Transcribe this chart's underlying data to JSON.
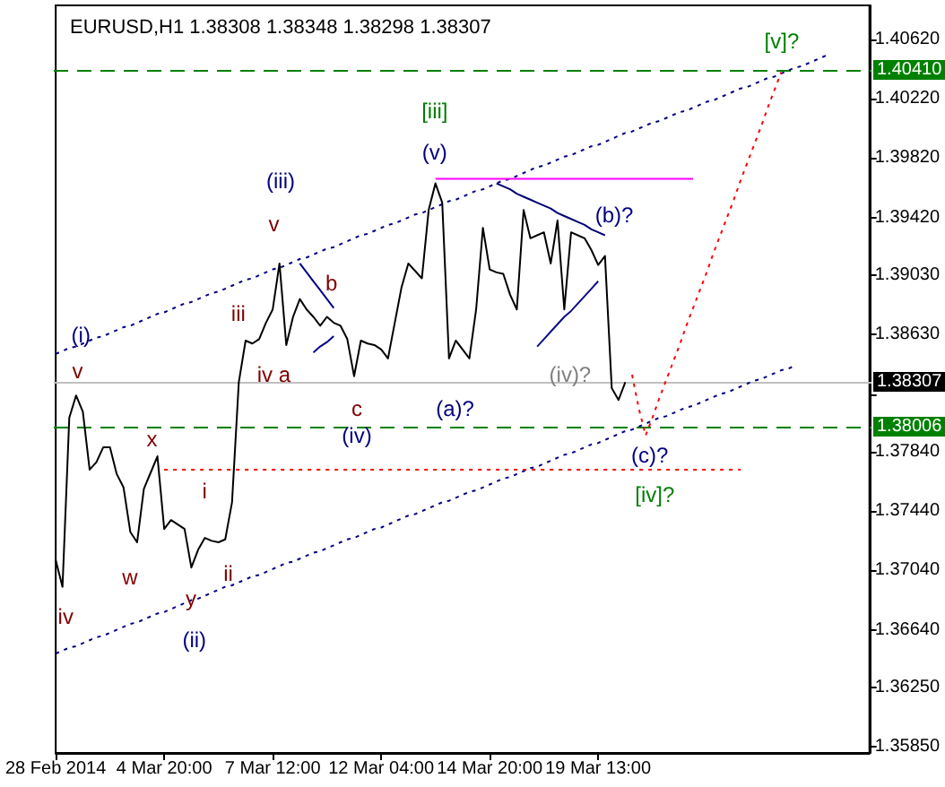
{
  "chart_data": {
    "type": "line",
    "title": "EURUSD,H1 1.38308 1.38348 1.38298 1.38307",
    "marker": "none",
    "ylim": [
      1.3581,
      1.4085
    ],
    "categories": [
      "28 Feb 2014",
      null,
      null,
      null,
      null,
      null,
      null,
      null,
      null,
      null,
      null,
      null,
      null,
      null,
      null,
      null,
      "4 Mar 20:00",
      null,
      null,
      null,
      null,
      null,
      null,
      null,
      null,
      null,
      null,
      null,
      null,
      null,
      null,
      null,
      "7 Mar 12:00",
      null,
      null,
      null,
      null,
      null,
      null,
      null,
      null,
      null,
      null,
      null,
      null,
      null,
      null,
      null,
      "12 Mar 04:00",
      null,
      null,
      null,
      null,
      null,
      null,
      null,
      null,
      null,
      null,
      null,
      null,
      null,
      null,
      null,
      "14 Mar 20:00",
      null,
      null,
      null,
      null,
      null,
      null,
      null,
      null,
      null,
      null,
      null,
      null,
      null,
      null,
      null,
      "19 Mar 13:00",
      null,
      null,
      null,
      null,
      null,
      null,
      null,
      null,
      null,
      null,
      null,
      null,
      null,
      null,
      null,
      null,
      null,
      null,
      null,
      null,
      null,
      null,
      null,
      null,
      null,
      null,
      null,
      null,
      null,
      null,
      null,
      null,
      null,
      null,
      null,
      null,
      null,
      null,
      null,
      null
    ],
    "yticks": [
      {
        "value": 1.4062,
        "label": "1.40620"
      },
      {
        "value": 1.4022,
        "label": "1.40220"
      },
      {
        "value": 1.3982,
        "label": "1.39820"
      },
      {
        "value": 1.3942,
        "label": "1.39420"
      },
      {
        "value": 1.3903,
        "label": "1.39030"
      },
      {
        "value": 1.3863,
        "label": "1.38630"
      },
      {
        "value": 1.3823,
        "label": null
      },
      {
        "value": 1.3784,
        "label": "1.37840"
      },
      {
        "value": 1.3744,
        "label": "1.37440"
      },
      {
        "value": 1.3704,
        "label": "1.37040"
      },
      {
        "value": 1.3664,
        "label": "1.36640"
      },
      {
        "value": 1.3625,
        "label": "1.36250"
      },
      {
        "value": 1.3585,
        "label": "1.35850"
      }
    ],
    "series": [
      {
        "color": "#000000",
        "line_style": "solid",
        "values": [
          1.3711,
          1.3693,
          1.3807,
          1.3822,
          1.3811,
          1.3772,
          1.3777,
          1.3787,
          1.3787,
          1.3769,
          1.376,
          1.373,
          1.3723,
          1.3759,
          1.377,
          1.3781,
          1.3732,
          1.3738,
          1.3735,
          1.3732,
          1.3706,
          1.3718,
          1.3726,
          1.3724,
          1.3723,
          1.3725,
          1.375,
          1.3831,
          1.3859,
          1.3857,
          1.386,
          1.3871,
          1.388,
          1.3911,
          1.3856,
          1.3875,
          1.3887,
          1.388,
          1.3875,
          1.3869,
          1.3875,
          1.3871,
          1.3869,
          1.386,
          1.3835,
          1.3859,
          1.3857,
          1.3856,
          1.3853,
          1.3847,
          1.3871,
          1.3895,
          1.3911,
          1.3906,
          1.3901,
          1.3947,
          1.3965,
          1.3952,
          1.3847,
          1.3859,
          1.3853,
          1.3847,
          1.388,
          1.3935,
          1.3907,
          1.3905,
          1.3904,
          1.389,
          1.388,
          1.3947,
          1.3928,
          1.393,
          1.3932,
          1.3911,
          1.394,
          1.388,
          1.3932,
          1.393,
          1.3928,
          1.392,
          1.391,
          1.3916,
          1.3827,
          1.3819,
          1.3831,
          null,
          null,
          null,
          null,
          null,
          null,
          null,
          null,
          null,
          null,
          null,
          null,
          null,
          null,
          null,
          null,
          null,
          null,
          null,
          null,
          null,
          null,
          null,
          null,
          null,
          null,
          null,
          null,
          null,
          null,
          null,
          null,
          null,
          null,
          null,
          null
        ]
      },
      {
        "color": "#000080",
        "line_style": "dotted",
        "values": [
          1.385,
          1.3852,
          1.3854,
          1.3855,
          1.3857,
          1.3859,
          1.3861,
          1.3862,
          1.3864,
          1.3866,
          1.3868,
          1.3869,
          1.3871,
          1.3873,
          1.3875,
          1.3877,
          1.3878,
          1.388,
          1.3882,
          1.3884,
          1.3885,
          1.3887,
          1.3889,
          1.3891,
          1.3892,
          1.3894,
          1.3896,
          1.3898,
          1.39,
          1.3901,
          1.3903,
          1.3905,
          1.3907,
          1.3908,
          1.391,
          1.3912,
          1.3914,
          1.3915,
          1.3917,
          1.3919,
          1.3921,
          1.3922,
          1.3924,
          1.3926,
          1.3928,
          1.393,
          1.3931,
          1.3933,
          1.3935,
          1.3937,
          1.3938,
          1.394,
          1.3942,
          1.3944,
          1.3945,
          1.3947,
          1.3949,
          1.3951,
          1.3953,
          1.3954,
          1.3956,
          1.3958,
          1.396,
          1.3961,
          1.3963,
          1.3965,
          1.3967,
          1.3968,
          1.397,
          1.3972,
          1.3974,
          1.3976,
          1.3977,
          1.3979,
          1.3981,
          1.3983,
          1.3984,
          1.3986,
          1.3988,
          1.399,
          1.3991,
          1.3993,
          1.3995,
          1.3997,
          1.3999,
          1.4,
          1.4002,
          1.4004,
          1.4006,
          1.4007,
          1.4009,
          1.4011,
          1.4013,
          1.4014,
          1.4016,
          1.4018,
          1.402,
          1.4021,
          1.4023,
          1.4025,
          1.4027,
          1.4029,
          1.403,
          1.4032,
          1.4034,
          1.4036,
          1.4037,
          1.4039,
          1.4041,
          1.4043,
          1.4044,
          1.4046,
          1.4048,
          1.405,
          1.4052,
          null,
          null,
          null,
          null,
          null,
          null
        ]
      },
      {
        "color": "#000080",
        "line_style": "dotted",
        "values": [
          1.3648,
          1.365,
          1.3652,
          1.3653,
          1.3655,
          1.3657,
          1.3659,
          1.366,
          1.3662,
          1.3664,
          1.3666,
          1.3668,
          1.3669,
          1.3671,
          1.3673,
          1.3675,
          1.3676,
          1.3678,
          1.368,
          1.3682,
          1.3684,
          1.3685,
          1.3687,
          1.3689,
          1.3691,
          1.3693,
          1.3694,
          1.3696,
          1.3698,
          1.37,
          1.3701,
          1.3703,
          1.3705,
          1.3707,
          1.3709,
          1.371,
          1.3712,
          1.3714,
          1.3716,
          1.3717,
          1.3719,
          1.3721,
          1.3723,
          1.3725,
          1.3726,
          1.3728,
          1.373,
          1.3732,
          1.3733,
          1.3735,
          1.3737,
          1.3739,
          1.3741,
          1.3742,
          1.3744,
          1.3746,
          1.3748,
          1.375,
          1.3751,
          1.3753,
          1.3755,
          1.3757,
          1.3758,
          1.376,
          1.3762,
          1.3764,
          1.3766,
          1.3767,
          1.3769,
          1.3771,
          1.3773,
          1.3774,
          1.3776,
          1.3778,
          1.378,
          1.3782,
          1.3783,
          1.3785,
          1.3787,
          1.3789,
          1.379,
          1.3792,
          1.3794,
          1.3796,
          1.3798,
          1.3799,
          1.3801,
          1.3803,
          1.3805,
          1.3807,
          1.3808,
          1.381,
          1.3812,
          1.3814,
          1.3815,
          1.3817,
          1.3819,
          1.3821,
          1.3823,
          1.3824,
          1.3826,
          1.3828,
          1.383,
          1.3832,
          1.3833,
          1.3835,
          1.3837,
          1.3839,
          1.384,
          1.3842,
          null,
          null,
          null,
          null,
          null,
          null,
          null,
          null,
          null,
          null,
          null
        ]
      },
      {
        "color": "#ff00ff",
        "line_style": "solid",
        "values": [
          null,
          null,
          null,
          null,
          null,
          null,
          null,
          null,
          null,
          null,
          null,
          null,
          null,
          null,
          null,
          null,
          null,
          null,
          null,
          null,
          null,
          null,
          null,
          null,
          null,
          null,
          null,
          null,
          null,
          null,
          null,
          null,
          null,
          null,
          null,
          null,
          null,
          null,
          null,
          null,
          null,
          null,
          null,
          null,
          null,
          null,
          null,
          null,
          null,
          null,
          null,
          null,
          null,
          null,
          null,
          null,
          1.3968,
          1.3968,
          1.3968,
          1.3968,
          1.3968,
          1.3968,
          1.3968,
          1.3968,
          1.3968,
          1.3968,
          1.3968,
          1.3968,
          1.3968,
          1.3968,
          1.3968,
          1.3968,
          1.3968,
          1.3968,
          1.3968,
          1.3968,
          1.3968,
          1.3968,
          1.3968,
          1.3968,
          1.3968,
          1.3968,
          1.3968,
          1.3968,
          1.3968,
          1.3968,
          1.3968,
          1.3968,
          1.3968,
          1.3968,
          1.3968,
          1.3968,
          1.3968,
          1.3968,
          1.3968,
          null,
          null,
          null,
          null,
          null,
          null,
          null,
          null,
          null,
          null,
          null,
          null,
          null,
          null,
          null,
          null,
          null,
          null,
          null,
          null,
          null,
          null,
          null,
          null,
          null,
          null
        ]
      },
      {
        "color": "#ff0000",
        "line_style": "dotted",
        "values": [
          null,
          null,
          null,
          null,
          null,
          null,
          null,
          null,
          null,
          null,
          null,
          null,
          null,
          null,
          null,
          null,
          1.3772,
          1.3772,
          1.3772,
          1.3772,
          1.3772,
          1.3772,
          1.3772,
          1.3772,
          1.3772,
          1.3772,
          1.3772,
          1.3772,
          1.3772,
          1.3772,
          1.3772,
          1.3772,
          1.3772,
          1.3772,
          1.3772,
          1.3772,
          1.3772,
          1.3772,
          1.3772,
          1.3772,
          1.3772,
          1.3772,
          1.3772,
          1.3772,
          1.3772,
          1.3772,
          1.3772,
          1.3772,
          1.3772,
          1.3772,
          1.3772,
          1.3772,
          1.3772,
          1.3772,
          1.3772,
          1.3772,
          1.3772,
          1.3772,
          1.3772,
          1.3772,
          1.3772,
          1.3772,
          1.3772,
          1.3772,
          1.3772,
          1.3772,
          1.3772,
          1.3772,
          1.3772,
          1.3772,
          1.3772,
          1.3772,
          1.3772,
          1.3772,
          1.3772,
          1.3772,
          1.3772,
          1.3772,
          1.3772,
          1.3772,
          1.3772,
          1.3772,
          1.3772,
          1.3772,
          1.3772,
          1.3772,
          1.3772,
          1.3772,
          1.3772,
          1.3772,
          1.3772,
          1.3772,
          1.3772,
          1.3772,
          1.3772,
          1.3772,
          1.3772,
          1.3772,
          1.3772,
          1.3772,
          1.3772,
          1.3772,
          null,
          null,
          null,
          null,
          null,
          null,
          null,
          null,
          null,
          null,
          null,
          null,
          null,
          null,
          null,
          null,
          null,
          null,
          null
        ]
      },
      {
        "color": "#ff0000",
        "line_style": "dotted",
        "values": [
          null,
          null,
          null,
          null,
          null,
          null,
          null,
          null,
          null,
          null,
          null,
          null,
          null,
          null,
          null,
          null,
          null,
          null,
          null,
          null,
          null,
          null,
          null,
          null,
          null,
          null,
          null,
          null,
          null,
          null,
          null,
          null,
          null,
          null,
          null,
          null,
          null,
          null,
          null,
          null,
          null,
          null,
          null,
          null,
          null,
          null,
          null,
          null,
          null,
          null,
          null,
          null,
          null,
          null,
          null,
          null,
          null,
          null,
          null,
          null,
          null,
          null,
          null,
          null,
          null,
          null,
          null,
          null,
          null,
          null,
          null,
          null,
          null,
          null,
          null,
          null,
          null,
          null,
          null,
          null,
          null,
          null,
          null,
          null,
          null,
          1.3836,
          1.3813,
          1.3795,
          1.3807,
          1.382,
          1.3832,
          1.3844,
          1.3856,
          1.3869,
          1.3881,
          1.3893,
          1.3905,
          1.3918,
          1.393,
          1.3942,
          1.3954,
          1.3967,
          1.3979,
          1.3991,
          1.4003,
          1.4016,
          1.4028,
          1.404,
          null,
          null,
          null,
          null,
          null,
          null,
          null,
          null,
          null,
          null,
          null,
          null,
          null
        ]
      },
      {
        "color": "#000080",
        "line_style": "solid",
        "values": [
          null,
          null,
          null,
          null,
          null,
          null,
          null,
          null,
          null,
          null,
          null,
          null,
          null,
          null,
          null,
          null,
          null,
          null,
          null,
          null,
          null,
          null,
          null,
          null,
          null,
          null,
          null,
          null,
          null,
          null,
          null,
          null,
          null,
          null,
          null,
          null,
          1.3911,
          1.3905,
          1.3899,
          1.3893,
          1.3887,
          1.3881,
          null,
          null,
          null,
          null,
          null,
          null,
          null,
          null,
          null,
          null,
          null,
          null,
          null,
          null,
          null,
          null,
          null,
          null,
          null,
          null,
          null,
          null,
          null,
          null,
          null,
          null,
          null,
          null,
          null,
          null,
          null,
          null,
          null,
          null,
          null,
          null,
          null,
          null,
          null,
          null,
          null,
          null,
          null,
          null,
          null,
          null,
          null,
          null,
          null,
          null,
          null,
          null,
          null,
          null,
          null,
          null,
          null,
          null,
          null,
          null,
          null,
          null,
          null,
          null,
          null,
          null,
          null,
          null,
          null,
          null,
          null,
          null,
          null,
          null,
          null,
          null,
          null,
          null,
          null
        ]
      },
      {
        "color": "#00008c",
        "line_style": "solid",
        "values": [
          null,
          null,
          null,
          null,
          null,
          null,
          null,
          null,
          null,
          null,
          null,
          null,
          null,
          null,
          null,
          null,
          null,
          null,
          null,
          null,
          null,
          null,
          null,
          null,
          null,
          null,
          null,
          null,
          null,
          null,
          null,
          null,
          null,
          null,
          null,
          null,
          null,
          null,
          1.3851,
          1.3855,
          1.3858,
          1.3862,
          null,
          null,
          null,
          null,
          null,
          null,
          null,
          null,
          null,
          null,
          null,
          null,
          null,
          null,
          null,
          null,
          null,
          null,
          null,
          null,
          null,
          null,
          null,
          null,
          null,
          null,
          null,
          null,
          null,
          null,
          null,
          null,
          null,
          null,
          null,
          null,
          null,
          null,
          null,
          null,
          null,
          null,
          null,
          null,
          null,
          null,
          null,
          null,
          null,
          null,
          null,
          null,
          null,
          null,
          null,
          null,
          null,
          null,
          null,
          null,
          null,
          null,
          null,
          null,
          null,
          null,
          null,
          null,
          null,
          null,
          null,
          null,
          null,
          null,
          null,
          null,
          null,
          null,
          null
        ]
      },
      {
        "color": "#000074",
        "line_style": "solid",
        "values": [
          null,
          null,
          null,
          null,
          null,
          null,
          null,
          null,
          null,
          null,
          null,
          null,
          null,
          null,
          null,
          null,
          null,
          null,
          null,
          null,
          null,
          null,
          null,
          null,
          null,
          null,
          null,
          null,
          null,
          null,
          null,
          null,
          null,
          null,
          null,
          null,
          null,
          null,
          null,
          null,
          null,
          null,
          null,
          null,
          null,
          null,
          null,
          null,
          null,
          null,
          null,
          null,
          null,
          null,
          null,
          null,
          null,
          null,
          null,
          null,
          null,
          null,
          null,
          null,
          null,
          1.3965,
          1.3963,
          1.3961,
          1.3958,
          1.3956,
          1.3954,
          1.3952,
          1.395,
          1.3948,
          1.3945,
          1.3943,
          1.3941,
          1.3939,
          1.3937,
          1.3934,
          1.3932,
          1.393,
          null,
          null,
          null,
          null,
          null,
          null,
          null,
          null,
          null,
          null,
          null,
          null,
          null,
          null,
          null,
          null,
          null,
          null,
          null,
          null,
          null,
          null,
          null,
          null,
          null,
          null,
          null,
          null,
          null,
          null,
          null,
          null,
          null,
          null,
          null,
          null,
          null,
          null,
          null
        ]
      },
      {
        "color": "#0c0c88",
        "line_style": "solid",
        "values": [
          null,
          null,
          null,
          null,
          null,
          null,
          null,
          null,
          null,
          null,
          null,
          null,
          null,
          null,
          null,
          null,
          null,
          null,
          null,
          null,
          null,
          null,
          null,
          null,
          null,
          null,
          null,
          null,
          null,
          null,
          null,
          null,
          null,
          null,
          null,
          null,
          null,
          null,
          null,
          null,
          null,
          null,
          null,
          null,
          null,
          null,
          null,
          null,
          null,
          null,
          null,
          null,
          null,
          null,
          null,
          null,
          null,
          null,
          null,
          null,
          null,
          null,
          null,
          null,
          null,
          null,
          null,
          null,
          null,
          null,
          null,
          1.3855,
          1.386,
          1.3865,
          1.387,
          1.3875,
          1.3879,
          1.3884,
          1.3889,
          1.3894,
          1.3899,
          null,
          null,
          null,
          null,
          null,
          null,
          null,
          null,
          null,
          null,
          null,
          null,
          null,
          null,
          null,
          null,
          null,
          null,
          null,
          null,
          null,
          null,
          null,
          null,
          null,
          null,
          null,
          null,
          null,
          null,
          null,
          null,
          null,
          null,
          null,
          null,
          null,
          null,
          null,
          null
        ]
      }
    ],
    "ref_lines": [
      {
        "axis": "y",
        "value": 1.4041,
        "label": "1.40410",
        "color": "#008000",
        "line_style": "dashed"
      },
      {
        "axis": "y",
        "value": 1.38006,
        "label": "1.38006",
        "color": "#008000",
        "line_style": "dashed"
      },
      {
        "axis": "y",
        "value": 1.38307,
        "label": "1.38307",
        "color": "#c0c0c0",
        "line_style": "solid"
      }
    ],
    "annotations": [
      "(i)",
      "v",
      "iv",
      "w",
      "x",
      "i",
      "y",
      "ii",
      "(ii)",
      "iii",
      "iv a",
      "v",
      "(iii)",
      "b",
      "c",
      "(iv)",
      "[iii]",
      "(v)",
      "(a)?",
      "(b)?",
      "(iv)?",
      "(c)?",
      "[iv]?",
      "[v]?"
    ]
  }
}
